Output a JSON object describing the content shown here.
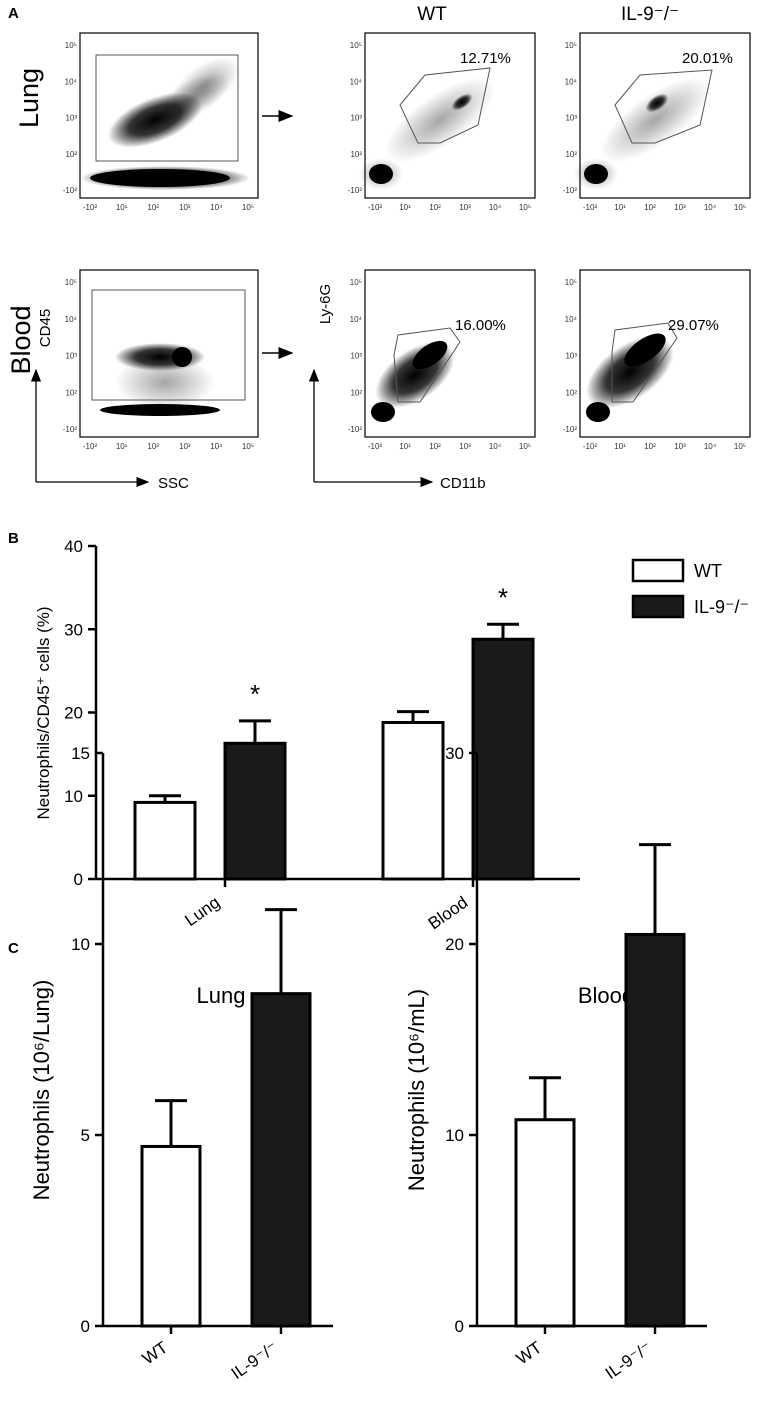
{
  "panel_a": {
    "label": "A",
    "row_labels": [
      "Lung",
      "Blood"
    ],
    "column_headers": [
      "WT",
      "IL-9⁻/⁻"
    ],
    "x_axis_left": "SSC",
    "y_axis_left": "CD45",
    "x_axis_right": "CD11b",
    "y_axis_right": "Ly-6G",
    "tick_labels_y": [
      "10⁵",
      "10⁴",
      "10³",
      "10²",
      "-10²"
    ],
    "tick_labels_x": [
      "-10²",
      "10¹",
      "10²",
      "10³",
      "10⁴",
      "10⁵"
    ],
    "gates": {
      "lung_wt": "12.71%",
      "lung_ko": "20.01%",
      "blood_wt": "16.00%",
      "blood_ko": "29.07%"
    }
  },
  "panel_b": {
    "label": "B",
    "star": "*"
  },
  "panel_c": {
    "label": "C"
  },
  "chart_data": [
    {
      "type": "bar",
      "panel": "B",
      "categories": [
        "Lung",
        "Blood"
      ],
      "series": [
        {
          "name": "WT",
          "values": [
            9.2,
            18.8
          ],
          "errors": [
            0.8,
            1.3
          ],
          "color": "#ffffff"
        },
        {
          "name": "IL-9⁻/⁻",
          "values": [
            16.3,
            28.8
          ],
          "errors": [
            2.7,
            1.8
          ],
          "color": "#1a1a1a"
        }
      ],
      "ylabel": "Neutrophils/CD45⁺ cells (%)",
      "ylim": [
        0,
        40
      ],
      "yticks": [
        "0",
        "10",
        "20",
        "30",
        "40"
      ],
      "significance": [
        "*",
        "*"
      ],
      "legend_position": "top-right"
    },
    {
      "type": "bar",
      "panel": "C",
      "title": "Lung",
      "categories": [
        "WT",
        "IL-9⁻/⁻"
      ],
      "values": [
        4.7,
        8.7
      ],
      "errors": [
        1.2,
        2.2
      ],
      "colors": [
        "#ffffff",
        "#1a1a1a"
      ],
      "ylabel": "Neutrophils (10⁶/Lung)",
      "ylim": [
        0,
        15
      ],
      "yticks": [
        "0",
        "5",
        "10",
        "15"
      ]
    },
    {
      "type": "bar",
      "panel": "C",
      "title": "Blood",
      "categories": [
        "WT",
        "IL-9⁻/⁻"
      ],
      "values": [
        10.8,
        20.5
      ],
      "errors": [
        2.2,
        4.7
      ],
      "colors": [
        "#ffffff",
        "#1a1a1a"
      ],
      "ylabel": "Neutrophils (10⁶/mL)",
      "ylim": [
        0,
        30
      ],
      "yticks": [
        "0",
        "10",
        "20",
        "30"
      ]
    }
  ]
}
